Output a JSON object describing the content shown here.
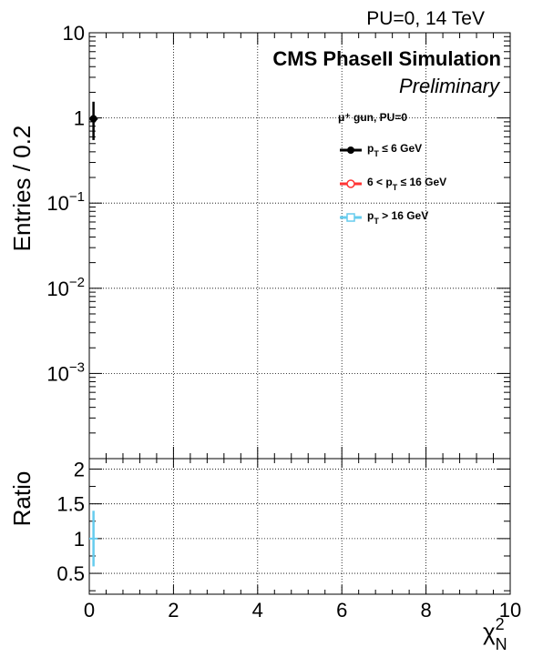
{
  "chart_data": [
    {
      "type": "scatter",
      "panel": "main",
      "header": "PU=0, 14 TeV",
      "cms_label": "CMS PhaseII Simulation",
      "preliminary": "Preliminary",
      "legend_header": "μ⁺ gun, PU=0",
      "legend_position": "top-right",
      "ylabel": "Entries / 0.2",
      "xlabel": "",
      "yscale": "log",
      "ylim": [
        0.0001,
        10
      ],
      "xlim": [
        0,
        10
      ],
      "grid": true,
      "ytick_labels": [
        {
          "value": 10,
          "base": "10",
          "exp": ""
        },
        {
          "value": 1,
          "base": "1",
          "exp": ""
        },
        {
          "value": 0.1,
          "base": "10",
          "exp": "−1"
        },
        {
          "value": 0.01,
          "base": "10",
          "exp": "−2"
        },
        {
          "value": 0.001,
          "base": "10",
          "exp": "−3"
        }
      ],
      "series": [
        {
          "name_prefix": "p",
          "name_sub": "T",
          "name_suffix": " ≤ 6 GeV",
          "color": "#000000",
          "marker": "filled-circle",
          "points": [
            {
              "x": 0.1,
              "y": 0.98,
              "ylow": 0.55,
              "yhigh": 1.55
            }
          ]
        },
        {
          "name_prefix": "6 < p",
          "name_sub": "T",
          "name_suffix": " ≤ 16 GeV",
          "color": "#ff3333",
          "marker": "open-circle",
          "points": []
        },
        {
          "name_prefix": "p",
          "name_sub": "T",
          "name_suffix": " > 16 GeV",
          "color": "#66ccee",
          "marker": "open-square",
          "points": []
        }
      ]
    },
    {
      "type": "scatter",
      "panel": "ratio",
      "ylabel": "Ratio",
      "xlabel_base": "χ",
      "xlabel_sup": "2",
      "xlabel_sub": "N",
      "ylim": [
        0.2,
        2.15
      ],
      "xlim": [
        0,
        10
      ],
      "grid": true,
      "xticks": [
        "0",
        "2",
        "4",
        "6",
        "8",
        "10"
      ],
      "yticks": [
        "0.5",
        "1",
        "1.5",
        "2"
      ],
      "series": [
        {
          "color": "#66ccee",
          "points": [
            {
              "x": 0.1,
              "y": 1.0,
              "ylow": 0.6,
              "yhigh": 1.4
            }
          ]
        }
      ]
    }
  ]
}
